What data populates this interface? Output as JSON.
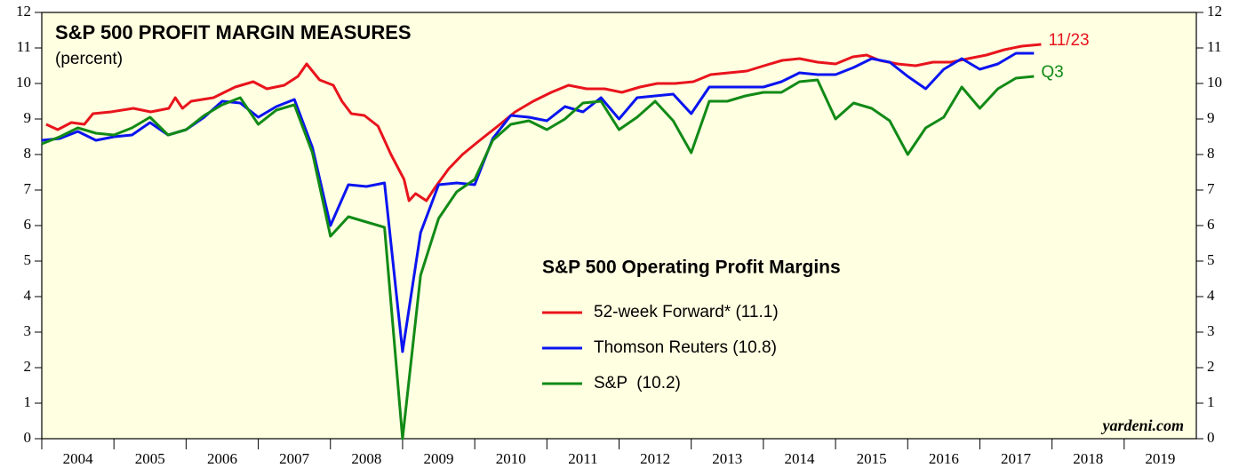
{
  "chart_data": {
    "type": "line",
    "title": "S&P 500 PROFIT MARGIN MEASURES",
    "subtitle": "(percent)",
    "legend_title": "S&P 500 Operating Profit Margins",
    "watermark": "yardeni.com",
    "xlim": [
      2004,
      2020
    ],
    "xticks": [
      2004,
      2005,
      2006,
      2007,
      2008,
      2009,
      2010,
      2011,
      2012,
      2013,
      2014,
      2015,
      2016,
      2017,
      2018,
      2019
    ],
    "ylim": [
      0,
      12
    ],
    "yticks": [
      0,
      1,
      2,
      3,
      4,
      5,
      6,
      7,
      8,
      9,
      10,
      11,
      12
    ],
    "x": [
      2004,
      2004.25,
      2004.5,
      2004.75,
      2005,
      2005.25,
      2005.5,
      2005.75,
      2006,
      2006.25,
      2006.5,
      2006.75,
      2007,
      2007.25,
      2007.5,
      2007.75,
      2008,
      2008.25,
      2008.5,
      2008.75,
      2009,
      2009.25,
      2009.5,
      2009.75,
      2010,
      2010.25,
      2010.5,
      2010.75,
      2011,
      2011.25,
      2011.5,
      2011.75,
      2012,
      2012.25,
      2012.5,
      2012.75,
      2013,
      2013.25,
      2013.5,
      2013.75,
      2014,
      2014.25,
      2014.5,
      2014.75,
      2015,
      2015.25,
      2015.5,
      2015.75,
      2016,
      2016.25,
      2016.5,
      2016.75,
      2017,
      2017.25,
      2017.5,
      2017.75
    ],
    "series": [
      {
        "name": "52-week Forward* (11.1)",
        "color": "#e8141c",
        "end_label": "11/23",
        "x": [
          2004.06,
          2004.22,
          2004.41,
          2004.59,
          2004.71,
          2004.96,
          2005.27,
          2005.51,
          2005.76,
          2005.85,
          2005.95,
          2006.07,
          2006.38,
          2006.68,
          2006.93,
          2007.12,
          2007.36,
          2007.55,
          2007.67,
          2007.85,
          2008.04,
          2008.16,
          2008.29,
          2008.47,
          2008.66,
          2008.84,
          2009.02,
          2009.09,
          2009.18,
          2009.33,
          2009.46,
          2009.64,
          2009.83,
          2010.07,
          2010.32,
          2010.56,
          2010.81,
          2011.06,
          2011.3,
          2011.55,
          2011.8,
          2012.04,
          2012.29,
          2012.53,
          2012.78,
          2013.03,
          2013.27,
          2013.52,
          2013.77,
          2014.01,
          2014.26,
          2014.5,
          2014.75,
          2015.0,
          2015.24,
          2015.43,
          2015.61,
          2015.86,
          2016.11,
          2016.35,
          2016.6,
          2016.84,
          2017.09,
          2017.34,
          2017.58,
          2017.85
        ],
        "values": [
          8.85,
          8.7,
          8.9,
          8.85,
          9.15,
          9.2,
          9.3,
          9.2,
          9.3,
          9.6,
          9.3,
          9.5,
          9.6,
          9.9,
          10.05,
          9.85,
          9.95,
          10.2,
          10.55,
          10.1,
          9.95,
          9.5,
          9.15,
          9.1,
          8.8,
          8.0,
          7.3,
          6.7,
          6.9,
          6.7,
          7.1,
          7.6,
          8.0,
          8.4,
          8.8,
          9.2,
          9.5,
          9.75,
          9.95,
          9.85,
          9.85,
          9.75,
          9.9,
          10.0,
          10.0,
          10.05,
          10.25,
          10.3,
          10.35,
          10.5,
          10.65,
          10.7,
          10.6,
          10.55,
          10.75,
          10.8,
          10.65,
          10.55,
          10.5,
          10.6,
          10.6,
          10.7,
          10.8,
          10.95,
          11.05,
          11.1
        ]
      },
      {
        "name": "Thomson Reuters (10.8)",
        "color": "#0a14f0",
        "values": [
          8.4,
          8.45,
          8.65,
          8.4,
          8.5,
          8.55,
          8.9,
          8.55,
          8.7,
          9.05,
          9.5,
          9.45,
          9.05,
          9.35,
          9.55,
          8.2,
          6.0,
          7.15,
          7.1,
          7.2,
          2.45,
          5.8,
          7.15,
          7.2,
          7.15,
          8.45,
          9.1,
          9.05,
          8.95,
          9.35,
          9.2,
          9.6,
          9.0,
          9.6,
          9.65,
          9.7,
          9.15,
          9.9,
          9.9,
          9.9,
          9.9,
          10.05,
          10.3,
          10.25,
          10.25,
          10.45,
          10.7,
          10.6,
          10.2,
          9.85,
          10.4,
          10.7,
          10.4,
          10.55,
          10.85,
          10.85
        ]
      },
      {
        "name": "S&P  (10.2)",
        "color": "#118a16",
        "end_label": "Q3",
        "values": [
          8.3,
          8.5,
          8.75,
          8.6,
          8.55,
          8.75,
          9.05,
          8.55,
          8.7,
          9.1,
          9.4,
          9.6,
          8.85,
          9.25,
          9.4,
          8.05,
          5.7,
          6.25,
          6.1,
          5.95,
          0.0,
          4.6,
          6.2,
          6.95,
          7.3,
          8.4,
          8.85,
          8.95,
          8.7,
          9.0,
          9.45,
          9.5,
          8.7,
          9.05,
          9.5,
          8.95,
          8.05,
          9.5,
          9.5,
          9.65,
          9.75,
          9.75,
          10.05,
          10.1,
          9.0,
          9.45,
          9.3,
          8.95,
          8.0,
          8.75,
          9.05,
          9.9,
          9.3,
          9.85,
          10.15,
          10.2
        ]
      }
    ]
  }
}
